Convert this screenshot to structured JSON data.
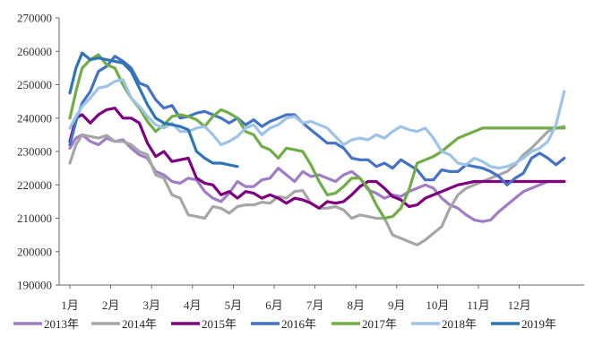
{
  "chart_data": {
    "type": "line",
    "title": "",
    "xlabel": "",
    "ylabel": "",
    "ylim": [
      190000,
      270000
    ],
    "yticks": [
      190000,
      200000,
      210000,
      220000,
      230000,
      240000,
      250000,
      260000,
      270000
    ],
    "xlim": [
      1,
      14
    ],
    "xticks": [
      {
        "label": "1月",
        "x": 1
      },
      {
        "label": "2月",
        "x": 2
      },
      {
        "label": "3月",
        "x": 3
      },
      {
        "label": "4月",
        "x": 4
      },
      {
        "label": "5月",
        "x": 5
      },
      {
        "label": "6月",
        "x": 6
      },
      {
        "label": "7月",
        "x": 7
      },
      {
        "label": "8月",
        "x": 8
      },
      {
        "label": "9月",
        "x": 9
      },
      {
        "label": "10月",
        "x": 10
      },
      {
        "label": "11月",
        "x": 11
      },
      {
        "label": "12月",
        "x": 12
      }
    ],
    "grid": false,
    "legend_position": "bottom",
    "series": [
      {
        "name": "2013年",
        "color": "#a07cc5",
        "x": [
          1.0,
          1.15,
          1.3,
          1.5,
          1.7,
          1.9,
          2.1,
          2.3,
          2.5,
          2.7,
          2.9,
          3.1,
          3.3,
          3.5,
          3.7,
          3.9,
          4.1,
          4.3,
          4.5,
          4.7,
          4.9,
          5.1,
          5.3,
          5.5,
          5.7,
          5.9,
          6.1,
          6.3,
          6.5,
          6.7,
          6.9,
          7.1,
          7.3,
          7.5,
          7.7,
          7.9,
          8.1,
          8.3,
          8.5,
          8.7,
          8.9,
          9.1,
          9.3,
          9.5,
          9.7,
          9.9,
          10.1,
          10.3,
          10.5,
          10.7,
          10.9,
          11.1,
          11.3,
          11.5,
          11.7,
          11.9,
          12.1,
          12.3,
          12.5,
          12.7,
          12.9,
          13.1
        ],
        "y": [
          231000,
          234000,
          235000,
          233000,
          232000,
          234000,
          233000,
          233500,
          231000,
          229000,
          228000,
          224000,
          223000,
          221000,
          220500,
          222000,
          221500,
          218000,
          216000,
          215000,
          217500,
          221000,
          219500,
          219500,
          221500,
          222000,
          225000,
          223000,
          221000,
          224000,
          222500,
          223000,
          222000,
          221000,
          223000,
          224000,
          222000,
          218500,
          217500,
          216000,
          217000,
          216500,
          218000,
          219000,
          220000,
          219000,
          216000,
          214000,
          213000,
          211000,
          209500,
          209000,
          209500,
          212000,
          214000,
          216000,
          218000,
          219000,
          220000,
          221000,
          221000,
          221000
        ]
      },
      {
        "name": "2014年",
        "color": "#a6a6a6",
        "x": [
          1.0,
          1.15,
          1.3,
          1.5,
          1.7,
          1.9,
          2.1,
          2.3,
          2.5,
          2.7,
          2.9,
          3.1,
          3.3,
          3.5,
          3.7,
          3.9,
          4.1,
          4.3,
          4.5,
          4.7,
          4.9,
          5.1,
          5.3,
          5.5,
          5.7,
          5.9,
          6.1,
          6.3,
          6.5,
          6.7,
          6.9,
          7.1,
          7.3,
          7.5,
          7.7,
          7.9,
          8.1,
          8.3,
          8.5,
          8.7,
          8.9,
          9.1,
          9.3,
          9.5,
          9.7,
          9.9,
          10.1,
          10.3,
          10.5,
          10.7,
          10.9,
          11.1,
          11.3,
          11.5,
          11.7,
          11.9,
          12.1,
          12.3,
          12.5,
          12.7,
          12.9,
          13.1
        ],
        "y": [
          226500,
          232000,
          235000,
          234500,
          234000,
          234800,
          233000,
          233000,
          232000,
          230000,
          229000,
          223000,
          222000,
          217000,
          216000,
          211000,
          210500,
          210000,
          213500,
          213000,
          211500,
          213500,
          214000,
          214000,
          214800,
          214500,
          216500,
          216000,
          218000,
          218300,
          214500,
          213000,
          213000,
          213500,
          212500,
          210000,
          211000,
          210500,
          210000,
          210000,
          205000,
          204000,
          203000,
          202000,
          203500,
          205500,
          207500,
          213000,
          217000,
          219000,
          220000,
          221000,
          222000,
          223000,
          224000,
          226000,
          229000,
          231000,
          233500,
          236000,
          237000,
          237500
        ]
      },
      {
        "name": "2015年",
        "color": "#7f007f",
        "x": [
          1.0,
          1.15,
          1.3,
          1.5,
          1.7,
          1.9,
          2.1,
          2.3,
          2.5,
          2.7,
          2.9,
          3.1,
          3.3,
          3.5,
          3.7,
          3.9,
          4.1,
          4.3,
          4.5,
          4.7,
          4.9,
          5.1,
          5.3,
          5.5,
          5.7,
          5.9,
          6.1,
          6.3,
          6.5,
          6.7,
          6.9,
          7.1,
          7.3,
          7.5,
          7.7,
          7.9,
          8.1,
          8.3,
          8.5,
          8.7,
          8.9,
          9.1,
          9.3,
          9.5,
          9.7,
          9.9,
          10.1,
          10.3,
          10.5,
          10.7,
          10.9,
          11.1,
          11.3,
          11.5,
          11.7,
          11.9,
          12.1,
          12.3,
          12.5,
          12.7,
          12.9,
          13.1
        ],
        "y": [
          233000,
          240000,
          241000,
          238500,
          241000,
          242500,
          243000,
          240000,
          240000,
          238500,
          232500,
          228500,
          230000,
          227000,
          227500,
          228000,
          222000,
          220500,
          220000,
          217000,
          218000,
          216000,
          218000,
          217500,
          216000,
          217000,
          216000,
          214500,
          216000,
          215500,
          214500,
          213000,
          215000,
          214500,
          215000,
          217000,
          219500,
          221000,
          221000,
          219000,
          216500,
          215500,
          213500,
          214000,
          216000,
          217000,
          218000,
          219000,
          220000,
          220500,
          221000,
          221000,
          221000,
          221000,
          221000,
          221000,
          221000,
          221000,
          221000,
          221000,
          221000,
          221000
        ]
      },
      {
        "name": "2016年",
        "color": "#4472c4",
        "x": [
          1.0,
          1.15,
          1.3,
          1.5,
          1.7,
          1.9,
          2.1,
          2.3,
          2.5,
          2.7,
          2.9,
          3.1,
          3.3,
          3.5,
          3.7,
          3.9,
          4.1,
          4.3,
          4.5,
          4.7,
          4.9,
          5.1,
          5.3,
          5.5,
          5.7,
          5.9,
          6.1,
          6.3,
          6.5,
          6.7,
          6.9,
          7.1,
          7.3,
          7.5,
          7.7,
          7.9,
          8.1,
          8.3,
          8.5,
          8.7,
          8.9,
          9.1,
          9.3,
          9.5,
          9.7,
          9.9,
          10.1,
          10.3,
          10.5,
          10.7,
          10.9,
          11.1,
          11.3,
          11.5,
          11.7,
          11.9,
          12.1,
          12.3,
          12.5,
          12.7,
          12.9,
          13.1
        ],
        "y": [
          232000,
          239000,
          244500,
          248000,
          254000,
          255500,
          258500,
          257000,
          255000,
          250500,
          249500,
          245500,
          243000,
          243800,
          240000,
          240500,
          241500,
          242000,
          241000,
          240000,
          238500,
          240000,
          238000,
          239500,
          237500,
          239000,
          240000,
          241000,
          241000,
          238500,
          236500,
          234500,
          232500,
          232500,
          231000,
          228000,
          227500,
          227500,
          225500,
          226500,
          225000,
          227500,
          226000,
          224500,
          221500,
          221500,
          224500,
          224000,
          224000,
          226000,
          225500,
          225000,
          224000,
          222500,
          220000,
          222000,
          223500,
          228000,
          229500,
          228000,
          226000,
          228000
        ]
      },
      {
        "name": "2017年",
        "color": "#70ad47",
        "x": [
          1.0,
          1.15,
          1.3,
          1.5,
          1.7,
          1.9,
          2.1,
          2.3,
          2.5,
          2.7,
          2.9,
          3.1,
          3.3,
          3.5,
          3.7,
          3.9,
          4.1,
          4.3,
          4.5,
          4.7,
          4.9,
          5.1,
          5.3,
          5.5,
          5.7,
          5.9,
          6.1,
          6.3,
          6.5,
          6.7,
          6.9,
          7.1,
          7.3,
          7.5,
          7.7,
          7.9,
          8.1,
          8.3,
          8.5,
          8.7,
          8.9,
          9.1,
          9.3,
          9.5,
          9.7,
          9.9,
          10.1,
          10.3,
          10.5,
          10.7,
          10.9,
          11.1,
          11.3,
          11.5,
          11.7,
          11.9,
          12.1,
          12.3,
          12.5,
          12.7,
          12.9,
          13.1
        ],
        "y": [
          240000,
          248000,
          255000,
          257500,
          259000,
          256000,
          255000,
          250000,
          246000,
          243000,
          239000,
          236000,
          238000,
          240500,
          241000,
          240500,
          239500,
          237500,
          240500,
          242500,
          241500,
          240000,
          236000,
          235000,
          231500,
          230500,
          228000,
          231000,
          230500,
          230000,
          226000,
          221000,
          217000,
          217500,
          219500,
          222000,
          222000,
          219000,
          214000,
          210000,
          210500,
          213000,
          218500,
          226500,
          227500,
          228500,
          230000,
          232000,
          234000,
          235000,
          236000,
          237000,
          237000,
          237000,
          237000,
          237000,
          237000,
          237000,
          237000,
          237000,
          237000,
          237000
        ]
      },
      {
        "name": "2018年",
        "color": "#9dc3e6",
        "x": [
          1.0,
          1.15,
          1.3,
          1.5,
          1.7,
          1.9,
          2.1,
          2.3,
          2.5,
          2.7,
          2.9,
          3.1,
          3.3,
          3.5,
          3.7,
          3.9,
          4.1,
          4.3,
          4.5,
          4.7,
          4.9,
          5.1,
          5.3,
          5.5,
          5.7,
          5.9,
          6.1,
          6.3,
          6.5,
          6.7,
          6.9,
          7.1,
          7.3,
          7.5,
          7.7,
          7.9,
          8.1,
          8.3,
          8.5,
          8.7,
          8.9,
          9.1,
          9.3,
          9.5,
          9.7,
          9.9,
          10.1,
          10.3,
          10.5,
          10.7,
          10.9,
          11.1,
          11.3,
          11.5,
          11.7,
          11.9,
          12.1,
          12.3,
          12.5,
          12.7,
          12.9,
          13.1
        ],
        "y": [
          237000,
          240500,
          243500,
          246000,
          249000,
          249500,
          251000,
          251500,
          246000,
          243500,
          240500,
          238000,
          237000,
          238500,
          236000,
          236000,
          237000,
          237500,
          235000,
          232000,
          233000,
          234500,
          237000,
          238000,
          235000,
          237000,
          238000,
          240000,
          240500,
          238500,
          239000,
          238000,
          237000,
          234500,
          232000,
          233500,
          234000,
          233500,
          235000,
          234000,
          236000,
          237500,
          236500,
          236000,
          237000,
          234000,
          230000,
          229000,
          226500,
          226000,
          228000,
          227000,
          225500,
          225000,
          225500,
          226500,
          228000,
          230000,
          231000,
          233000,
          238000,
          248000
        ]
      },
      {
        "name": "2019年",
        "color": "#2e75b6",
        "x": [
          1.0,
          1.15,
          1.3,
          1.5,
          1.7,
          1.9,
          2.1,
          2.3,
          2.5,
          2.7,
          2.9,
          3.1,
          3.3,
          3.5,
          3.7,
          3.9,
          4.1,
          4.3,
          4.5,
          4.7,
          4.9,
          5.1
        ],
        "y": [
          247500,
          255000,
          259500,
          257500,
          258000,
          257500,
          257000,
          256500,
          254000,
          249000,
          244000,
          240000,
          238500,
          238000,
          237500,
          236500,
          230000,
          228000,
          226500,
          226500,
          226000,
          225500
        ]
      }
    ]
  }
}
